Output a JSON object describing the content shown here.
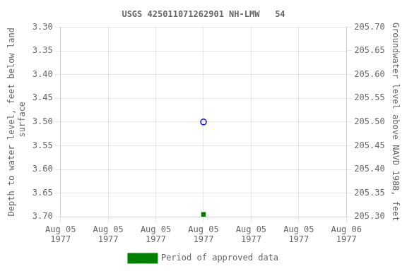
{
  "chart_data": {
    "type": "scatter",
    "title": "USGS 425011071262901 NH-LMW   54",
    "y_label": "Depth to water level, feet below land\n surface",
    "y2_label": "Groundwater level above NAVD 1988, feet",
    "categories": [
      "Aug 05\n1977",
      "Aug 05\n1977",
      "Aug 05\n1977",
      "Aug 05\n1977",
      "Aug 05\n1977",
      "Aug 05\n1977",
      "Aug 06\n1977"
    ],
    "series": [
      {
        "color": "#0000cc",
        "marker": "open_circle",
        "values": [
          null,
          null,
          null,
          3.5,
          null,
          null,
          null
        ]
      },
      {
        "name": "Period of approved data",
        "color": "#008000",
        "marker": "square",
        "values": [
          null,
          null,
          null,
          3.695,
          null,
          null,
          null
        ]
      }
    ],
    "ylim": [
      3.7,
      3.3
    ],
    "yticks": [
      {
        "value": 3.3,
        "label": "3.30"
      },
      3.35,
      {
        "value": 3.4,
        "label": "3.40"
      },
      3.45,
      {
        "value": 3.5,
        "label": "3.50"
      },
      3.55,
      {
        "value": 3.6,
        "label": "3.60"
      },
      3.65,
      {
        "value": 3.7,
        "label": "3.70"
      }
    ],
    "y2lim": [
      205.3,
      205.7
    ],
    "y2ticks": [
      {
        "value": 205.7,
        "label": "205.70"
      },
      205.65,
      {
        "value": 205.6,
        "label": "205.60"
      },
      205.55,
      {
        "value": 205.5,
        "label": "205.50"
      },
      205.45,
      {
        "value": 205.4,
        "label": "205.40"
      },
      205.35,
      {
        "value": 205.3,
        "label": "205.30"
      }
    ],
    "grid": true,
    "legend": "bottom"
  }
}
